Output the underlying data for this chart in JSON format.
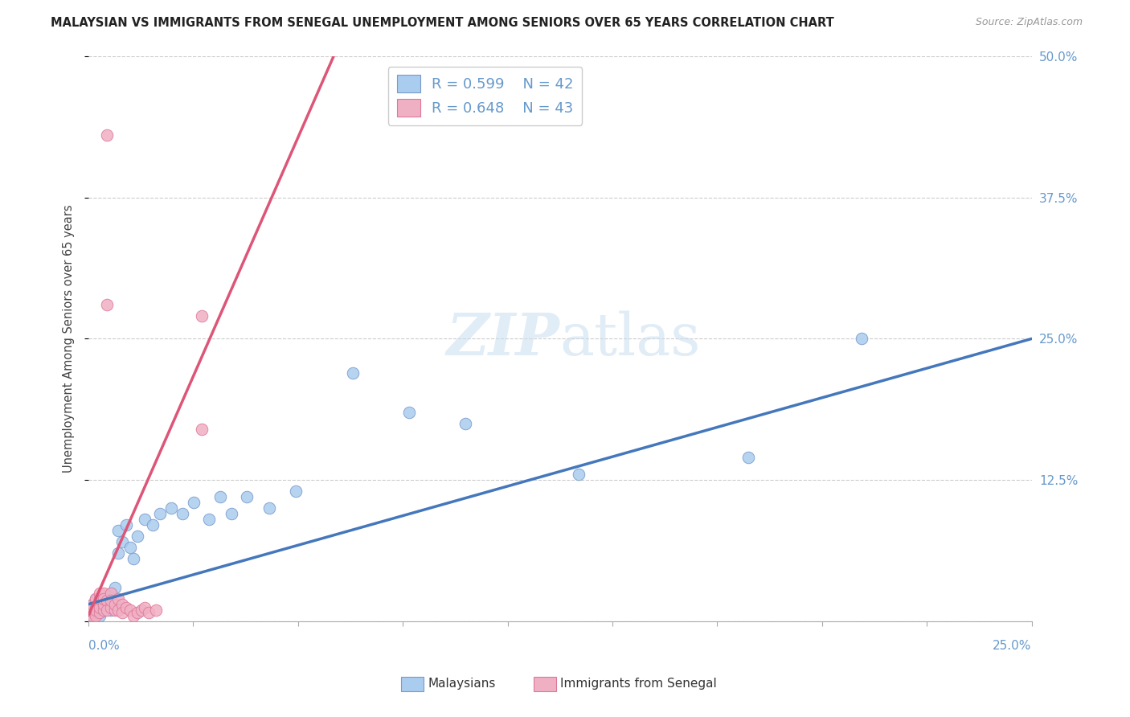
{
  "title": "MALAYSIAN VS IMMIGRANTS FROM SENEGAL UNEMPLOYMENT AMONG SENIORS OVER 65 YEARS CORRELATION CHART",
  "source": "Source: ZipAtlas.com",
  "ylabel": "Unemployment Among Seniors over 65 years",
  "xlim": [
    0,
    0.25
  ],
  "ylim": [
    0,
    0.5
  ],
  "legend1_r": "R = 0.599",
  "legend1_n": "N = 42",
  "legend2_r": "R = 0.648",
  "legend2_n": "N = 43",
  "series1_label": "Malaysians",
  "series2_label": "Immigrants from Senegal",
  "color_blue_fill": "#aaccee",
  "color_blue_edge": "#7799cc",
  "color_pink_fill": "#f0b0c4",
  "color_pink_edge": "#dd7799",
  "color_blue_line": "#4477bb",
  "color_pink_line": "#dd5577",
  "color_axis_labels": "#6699cc",
  "watermark_zip": "ZIP",
  "watermark_atlas": "atlas",
  "yticks": [
    0.0,
    0.125,
    0.25,
    0.375,
    0.5
  ],
  "ytick_labels": [
    "",
    "12.5%",
    "25.0%",
    "37.5%",
    "50.0%"
  ],
  "malaysian_x": [
    0.001,
    0.001,
    0.001,
    0.002,
    0.002,
    0.002,
    0.003,
    0.003,
    0.003,
    0.004,
    0.004,
    0.005,
    0.005,
    0.006,
    0.006,
    0.007,
    0.007,
    0.008,
    0.008,
    0.009,
    0.01,
    0.011,
    0.012,
    0.013,
    0.015,
    0.017,
    0.019,
    0.022,
    0.025,
    0.028,
    0.032,
    0.035,
    0.038,
    0.042,
    0.048,
    0.055,
    0.07,
    0.085,
    0.1,
    0.13,
    0.175,
    0.205
  ],
  "malaysian_y": [
    0.01,
    0.015,
    0.005,
    0.02,
    0.008,
    0.012,
    0.015,
    0.008,
    0.005,
    0.018,
    0.01,
    0.02,
    0.012,
    0.025,
    0.01,
    0.03,
    0.015,
    0.06,
    0.08,
    0.07,
    0.085,
    0.065,
    0.055,
    0.075,
    0.09,
    0.085,
    0.095,
    0.1,
    0.095,
    0.105,
    0.09,
    0.11,
    0.095,
    0.11,
    0.1,
    0.115,
    0.22,
    0.185,
    0.175,
    0.13,
    0.145,
    0.25
  ],
  "senegal_x": [
    0.001,
    0.001,
    0.001,
    0.001,
    0.001,
    0.002,
    0.002,
    0.002,
    0.002,
    0.002,
    0.002,
    0.003,
    0.003,
    0.003,
    0.003,
    0.003,
    0.004,
    0.004,
    0.004,
    0.004,
    0.005,
    0.005,
    0.005,
    0.006,
    0.006,
    0.006,
    0.007,
    0.007,
    0.008,
    0.008,
    0.009,
    0.009,
    0.01,
    0.011,
    0.012,
    0.013,
    0.014,
    0.015,
    0.016,
    0.018,
    0.005,
    0.03,
    0.03
  ],
  "senegal_y": [
    0.01,
    0.008,
    0.012,
    0.005,
    0.015,
    0.012,
    0.018,
    0.008,
    0.005,
    0.02,
    0.01,
    0.015,
    0.025,
    0.008,
    0.012,
    0.02,
    0.025,
    0.01,
    0.015,
    0.02,
    0.28,
    0.018,
    0.01,
    0.025,
    0.012,
    0.018,
    0.01,
    0.015,
    0.02,
    0.01,
    0.015,
    0.008,
    0.012,
    0.01,
    0.005,
    0.008,
    0.01,
    0.012,
    0.008,
    0.01,
    0.43,
    0.27,
    0.17
  ],
  "blue_trend": [
    0.0,
    0.015,
    0.25,
    0.25
  ],
  "pink_trend": [
    0.0,
    0.005,
    0.065,
    0.5
  ]
}
